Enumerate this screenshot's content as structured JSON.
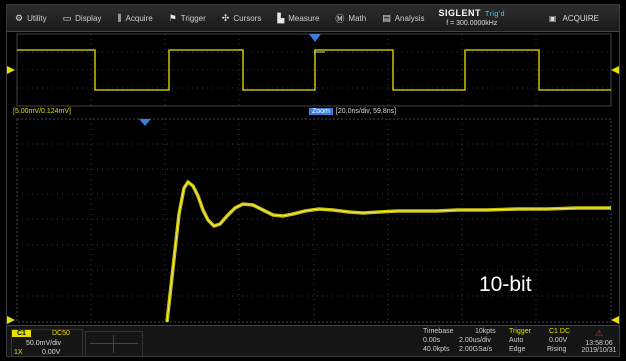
{
  "menu": {
    "items": [
      {
        "icon": "utility-icon",
        "glyph": "⚙",
        "label": "Utility"
      },
      {
        "icon": "display-icon",
        "glyph": "▭",
        "label": "Display"
      },
      {
        "icon": "acquire-icon",
        "glyph": "⫼",
        "label": "Acquire"
      },
      {
        "icon": "trigger-icon",
        "glyph": "⚑",
        "label": "Trigger"
      },
      {
        "icon": "cursors-icon",
        "glyph": "✣",
        "label": "Cursors"
      },
      {
        "icon": "measure-icon",
        "glyph": "▙",
        "label": "Measure"
      },
      {
        "icon": "math-icon",
        "glyph": "Ⓜ",
        "label": "Math"
      },
      {
        "icon": "analysis-icon",
        "glyph": "▤",
        "label": "Analysis"
      }
    ],
    "brand": "SIGLENT",
    "brand_mode": "Trig'd",
    "frequency": "f = 300.0000kHz",
    "acquire_status": "ACQUIRE"
  },
  "overview_labels": {
    "left_marker": "1",
    "right_marker": "◀"
  },
  "zoom": {
    "cursor_readout": "[5.00mV/0.124mV]",
    "tag": "Zoom",
    "setting": "[20.0ns/div, 59.8ns]"
  },
  "watermark": "10-bit",
  "channel1": {
    "badge": "C1",
    "coupling": "DC50",
    "vdiv": "50.0mV/div",
    "offset": "0.00V",
    "probe": "1X"
  },
  "timebase": {
    "title": "Timebase",
    "points": "10kpts",
    "delay": "0.00s",
    "div": "2.00us/div",
    "span": "40.0kpts",
    "rate": "2.00GSa/s"
  },
  "trigger": {
    "title": "Trigger",
    "source": "C1 DC",
    "mode": "Auto",
    "level": "0.00V",
    "type": "Edge",
    "slope": "Rising"
  },
  "clock": {
    "time": "13:58:06",
    "date": "2019/10/31"
  },
  "colors": {
    "ch1": "#e8e000",
    "accent": "#3b7dd8",
    "grid": "#555555"
  }
}
